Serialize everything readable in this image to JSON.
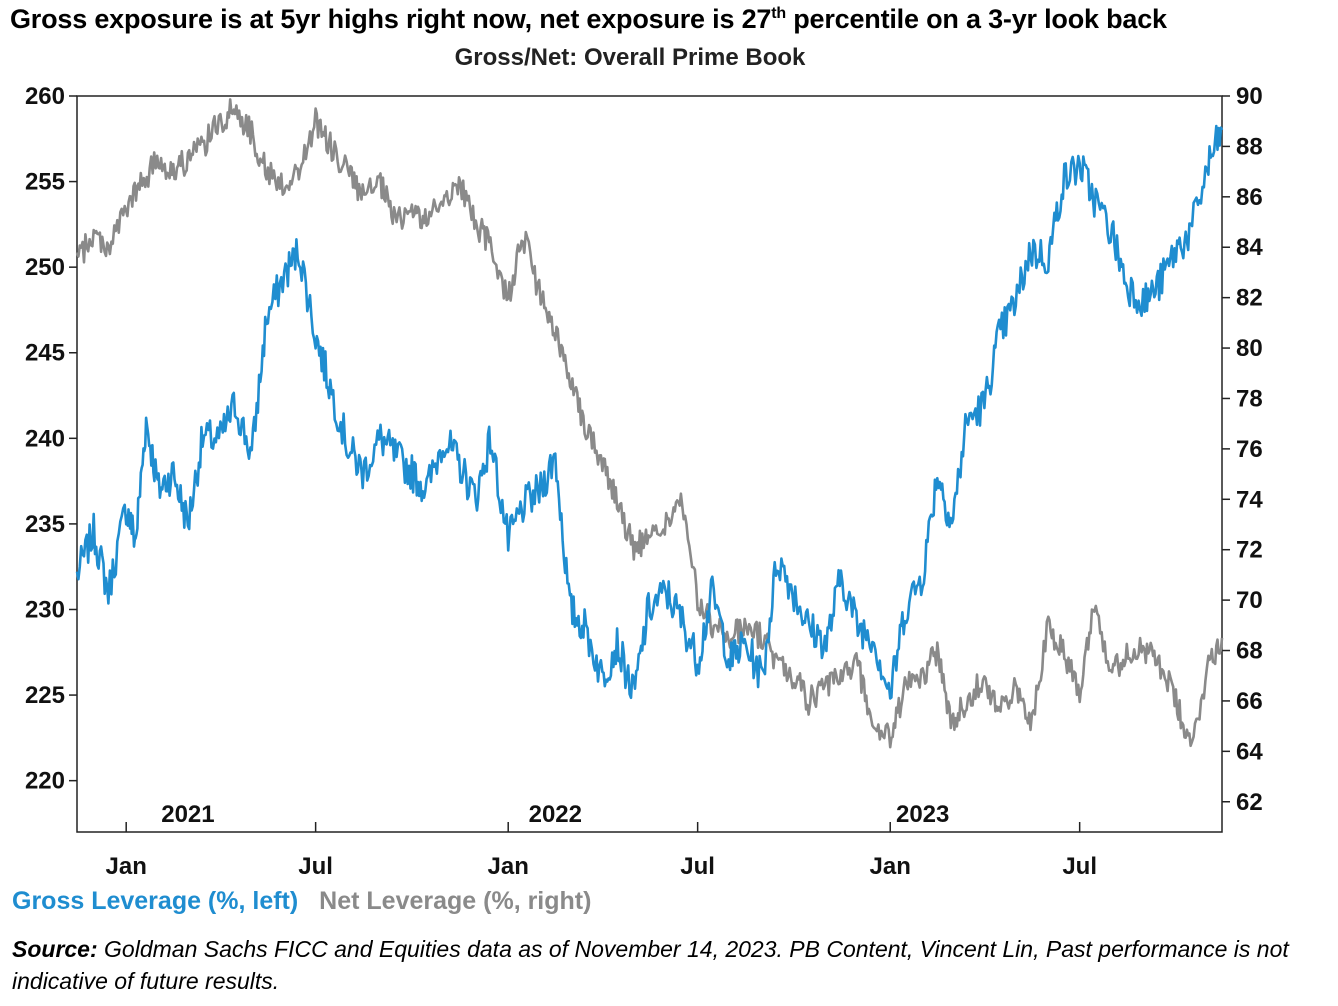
{
  "title_main": "Gross exposure is at 5yr highs right now, net exposure is 27",
  "title_sup": "th",
  "title_tail": " percentile on a 3-yr look back",
  "chart_data": {
    "type": "line",
    "title": "Gross/Net: Overall Prime Book",
    "x_range": [
      "2020-11-15",
      "2023-11-14"
    ],
    "x_ticks": [
      {
        "date": "2021-01-01",
        "label": "Jan"
      },
      {
        "date": "2021-07-01",
        "label": "Jul"
      },
      {
        "date": "2022-01-01",
        "label": "Jan"
      },
      {
        "date": "2022-07-01",
        "label": "Jul"
      },
      {
        "date": "2023-01-01",
        "label": "Jan"
      },
      {
        "date": "2023-07-01",
        "label": "Jul"
      }
    ],
    "year_labels": [
      {
        "date": "2021-03-01",
        "label": "2021"
      },
      {
        "date": "2022-02-15",
        "label": "2022"
      },
      {
        "date": "2023-02-01",
        "label": "2023"
      }
    ],
    "y_left": {
      "label": "Gross Leverage (%, left)",
      "min": 217,
      "max": 260,
      "ticks": [
        220,
        225,
        230,
        235,
        240,
        245,
        250,
        255,
        260
      ]
    },
    "y_right": {
      "label": "Net Leverage (%, right)",
      "min": 60.8,
      "max": 90,
      "ticks": [
        62,
        64,
        66,
        68,
        70,
        72,
        74,
        76,
        78,
        80,
        82,
        84,
        86,
        88,
        90
      ]
    },
    "series": [
      {
        "name": "Gross Leverage (%, left)",
        "axis": "left",
        "color": "#1f8dd0",
        "x": [
          "2020-11-15",
          "2020-12-01",
          "2020-12-15",
          "2021-01-01",
          "2021-01-10",
          "2021-01-20",
          "2021-02-01",
          "2021-02-15",
          "2021-03-01",
          "2021-03-15",
          "2021-04-01",
          "2021-04-15",
          "2021-05-01",
          "2021-05-15",
          "2021-06-01",
          "2021-06-15",
          "2021-07-01",
          "2021-07-15",
          "2021-08-01",
          "2021-08-15",
          "2021-09-01",
          "2021-09-15",
          "2021-10-01",
          "2021-10-15",
          "2021-11-01",
          "2021-11-15",
          "2021-12-01",
          "2021-12-15",
          "2022-01-01",
          "2022-01-15",
          "2022-02-01",
          "2022-02-15",
          "2022-03-01",
          "2022-03-15",
          "2022-04-01",
          "2022-04-15",
          "2022-05-01",
          "2022-05-15",
          "2022-06-01",
          "2022-06-15",
          "2022-07-01",
          "2022-07-15",
          "2022-08-01",
          "2022-08-15",
          "2022-09-01",
          "2022-09-15",
          "2022-10-01",
          "2022-10-15",
          "2022-11-01",
          "2022-11-15",
          "2022-12-01",
          "2022-12-15",
          "2023-01-01",
          "2023-01-15",
          "2023-02-01",
          "2023-02-15",
          "2023-03-01",
          "2023-03-15",
          "2023-04-01",
          "2023-04-15",
          "2023-05-01",
          "2023-05-15",
          "2023-06-01",
          "2023-06-15",
          "2023-07-01",
          "2023-07-15",
          "2023-08-01",
          "2023-08-15",
          "2023-09-01",
          "2023-09-15",
          "2023-10-01",
          "2023-10-15",
          "2023-11-01",
          "2023-11-14"
        ],
        "values": [
          232,
          234.5,
          231,
          236,
          234,
          241,
          237,
          238,
          235,
          240,
          240,
          242,
          239,
          247,
          249.5,
          251,
          246,
          243,
          239.5,
          238,
          240,
          239,
          238,
          237,
          240,
          238.5,
          236.5,
          240,
          234,
          236,
          237,
          239,
          230,
          229,
          226,
          228,
          225,
          230,
          231,
          229.5,
          227,
          231,
          227,
          228,
          226,
          233,
          231,
          229,
          228,
          232,
          229,
          228.5,
          225,
          230,
          232,
          238,
          235,
          241,
          242,
          246,
          248,
          251,
          250.5,
          255,
          256,
          254,
          252,
          249,
          248,
          249,
          251,
          252,
          256,
          258
        ]
      },
      {
        "name": "Net Leverage (%, right)",
        "axis": "right",
        "color": "#8a8a8a",
        "x": [
          "2020-11-15",
          "2020-12-01",
          "2020-12-15",
          "2021-01-01",
          "2021-01-15",
          "2021-02-01",
          "2021-02-15",
          "2021-03-01",
          "2021-03-15",
          "2021-04-01",
          "2021-04-15",
          "2021-05-01",
          "2021-05-15",
          "2021-06-01",
          "2021-06-15",
          "2021-07-01",
          "2021-07-15",
          "2021-08-01",
          "2021-08-15",
          "2021-09-01",
          "2021-09-15",
          "2021-10-01",
          "2021-10-15",
          "2021-11-01",
          "2021-11-15",
          "2021-12-01",
          "2021-12-15",
          "2022-01-01",
          "2022-01-15",
          "2022-02-01",
          "2022-02-15",
          "2022-03-01",
          "2022-03-15",
          "2022-04-01",
          "2022-04-15",
          "2022-05-01",
          "2022-05-15",
          "2022-06-01",
          "2022-06-15",
          "2022-07-01",
          "2022-07-15",
          "2022-08-01",
          "2022-08-15",
          "2022-09-01",
          "2022-09-15",
          "2022-10-01",
          "2022-10-15",
          "2022-11-01",
          "2022-11-15",
          "2022-12-01",
          "2022-12-15",
          "2023-01-01",
          "2023-01-15",
          "2023-02-01",
          "2023-02-15",
          "2023-03-01",
          "2023-03-15",
          "2023-04-01",
          "2023-04-15",
          "2023-05-01",
          "2023-05-15",
          "2023-06-01",
          "2023-06-15",
          "2023-07-01",
          "2023-07-15",
          "2023-08-01",
          "2023-08-15",
          "2023-09-01",
          "2023-09-15",
          "2023-10-01",
          "2023-10-15",
          "2023-11-01",
          "2023-11-14"
        ],
        "values": [
          83.5,
          84.5,
          84,
          85.5,
          86.5,
          87.5,
          87,
          87.5,
          88,
          89,
          89.5,
          88.5,
          87,
          86.5,
          87,
          89,
          88,
          87,
          86,
          86.5,
          85,
          85.5,
          85,
          86,
          86.5,
          85,
          84,
          82,
          84.5,
          82,
          80.5,
          79,
          77,
          75.5,
          74,
          72,
          72.5,
          73,
          74,
          70,
          69,
          68.5,
          69,
          68.5,
          67.5,
          67,
          66,
          66.5,
          67,
          67.5,
          65,
          64.5,
          66.5,
          67,
          68,
          65,
          66,
          67,
          65.5,
          66.5,
          65,
          69,
          68,
          66.5,
          70,
          67,
          68,
          68,
          67.5,
          66,
          64,
          67.5,
          68.5
        ]
      }
    ]
  },
  "legend": {
    "gross": "Gross Leverage (%, left)",
    "net": "Net Leverage (%, right)"
  },
  "source": {
    "label": "Source:",
    "text": " Goldman Sachs FICC and Equities data as of November 14, 2023. PB Content, Vincent Lin, Past performance is not indicative of future results."
  },
  "colors": {
    "gross": "#1f8dd0",
    "net": "#8a8a8a"
  }
}
